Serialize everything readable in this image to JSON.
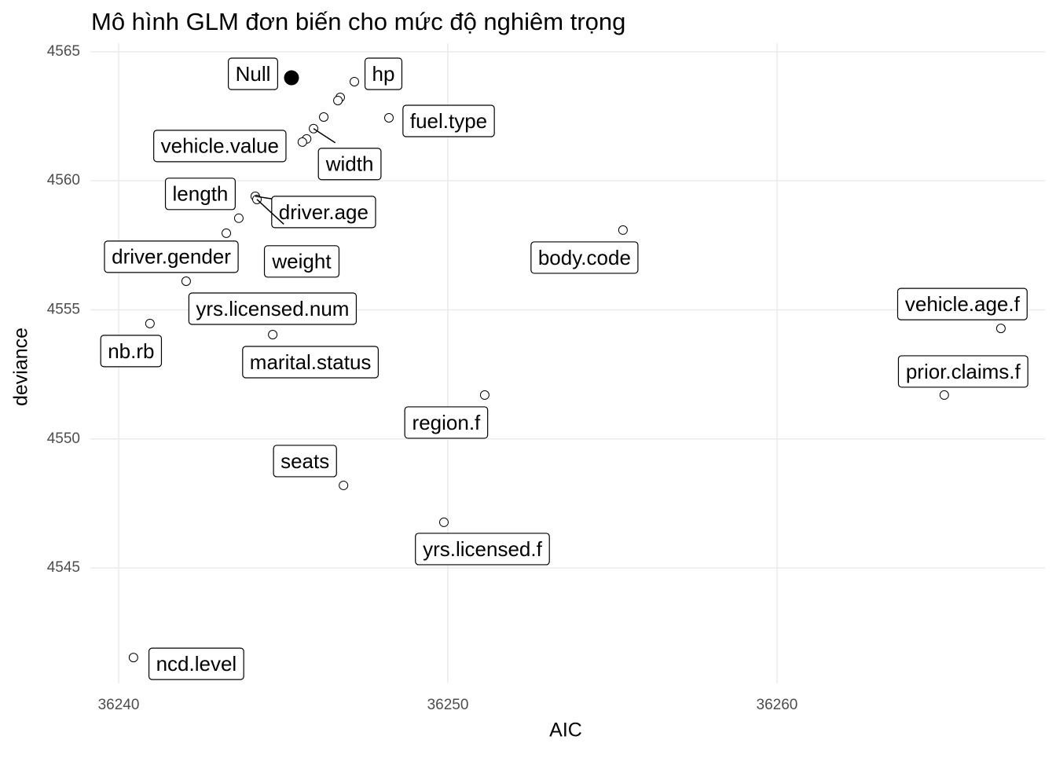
{
  "chart_data": {
    "type": "scatter",
    "title": "Mô hình GLM đơn biến cho mức độ nghiêm trọng",
    "x_label": "AIC",
    "y_label": "deviance",
    "xlim": [
      36239.14,
      36268.14
    ],
    "ylim": [
      4540.53,
      4565.33
    ],
    "xticks": [
      36240,
      36250,
      36260
    ],
    "yticks": [
      4545,
      4550,
      4555,
      4560,
      4565
    ],
    "grid": true,
    "series": [
      {
        "marker": "filled",
        "color": "#000000",
        "x": [
          36245.25
        ],
        "values": [
          4563.99
        ],
        "labels": [
          "Null"
        ]
      },
      {
        "marker": "open",
        "color": "#000000",
        "x": [
          36247.16,
          36246.73,
          36246.66,
          36248.21,
          36246.23,
          36245.92,
          36245.71,
          36245.58,
          36244.15,
          36244.2,
          36243.65,
          36243.27,
          36255.32,
          36242.05,
          36240.95,
          36244.68,
          36266.8,
          36265.08,
          36251.12,
          36246.83,
          36249.88,
          36240.45
        ],
        "values": [
          4563.84,
          4563.23,
          4563.11,
          4562.44,
          4562.47,
          4562.02,
          4561.62,
          4561.5,
          4559.4,
          4559.28,
          4558.55,
          4557.97,
          4558.09,
          4556.11,
          4554.47,
          4554.04,
          4554.28,
          4551.7,
          4551.7,
          4548.2,
          4546.77,
          4541.53
        ],
        "labels": [
          "hp",
          null,
          null,
          "fuel.type",
          null,
          "width",
          null,
          "vehicle.value",
          "driver.age",
          "weight",
          "length",
          "driver.gender",
          "body.code",
          "yrs.licensed.num",
          "nb.rb",
          "marital.status",
          "vehicle.age.f",
          "prior.claims.f",
          "region.f",
          "seats",
          "yrs.licensed.f",
          "ncd.level"
        ]
      }
    ]
  }
}
